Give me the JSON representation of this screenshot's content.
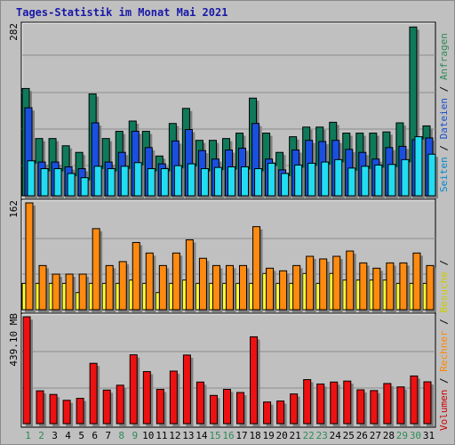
{
  "title": "Tages-Statistik im Monat Mai 2021",
  "panels": {
    "top": {
      "ylabel": "282"
    },
    "middle": {
      "ylabel": "162"
    },
    "bottom": {
      "ylabel": "439.10 MB"
    }
  },
  "legend_right_top": [
    {
      "text": "Seiten",
      "color": "#0088cc"
    },
    {
      "text": " / ",
      "color": "#000000"
    },
    {
      "text": "Dateien",
      "color": "#1a4fd0"
    },
    {
      "text": " / ",
      "color": "#000000"
    },
    {
      "text": "Anfragen",
      "color": "#2e8b57"
    }
  ],
  "legend_right_bottom": [
    {
      "text": "Volumen",
      "color": "#cc0000"
    },
    {
      "text": " / ",
      "color": "#000000"
    },
    {
      "text": "Rechner",
      "color": "#ff8800"
    },
    {
      "text": " / ",
      "color": "#000000"
    },
    {
      "text": "Besuche",
      "color": "#cccc00"
    },
    {
      "text": " / ",
      "color": "#000000"
    }
  ],
  "colors": {
    "anfragen": "#0f7a5a",
    "dateien": "#1a4fe0",
    "seiten": "#22ddf2",
    "rechner": "#ff8a10",
    "besuche": "#ffff30",
    "volumen": "#ee1111",
    "weekday_label": "#000000",
    "weekend_label": "#2e8b57"
  },
  "chart_data": [
    {
      "type": "bar",
      "title": "Tages-Statistik im Monat Mai 2021",
      "ylabel": "282",
      "ylim": [
        0,
        282
      ],
      "categories": [
        "1",
        "2",
        "3",
        "4",
        "5",
        "6",
        "7",
        "8",
        "9",
        "10",
        "11",
        "12",
        "13",
        "14",
        "15",
        "16",
        "17",
        "18",
        "19",
        "20",
        "21",
        "22",
        "23",
        "24",
        "25",
        "26",
        "27",
        "28",
        "29",
        "30",
        "31"
      ],
      "series": [
        {
          "name": "Anfragen",
          "values": [
            178,
            95,
            95,
            83,
            72,
            169,
            95,
            107,
            124,
            107,
            66,
            120,
            145,
            92,
            92,
            95,
            104,
            162,
            104,
            72,
            98,
            114,
            114,
            122,
            104,
            104,
            104,
            106,
            121,
            280,
            116
          ]
        },
        {
          "name": "Dateien",
          "values": [
            146,
            56,
            56,
            48,
            45,
            121,
            56,
            72,
            107,
            80,
            53,
            91,
            110,
            75,
            61,
            76,
            79,
            120,
            61,
            43,
            76,
            92,
            90,
            92,
            77,
            72,
            61,
            80,
            82,
            93,
            96
          ]
        },
        {
          "name": "Seiten",
          "values": [
            58,
            45,
            45,
            37,
            30,
            49,
            45,
            49,
            55,
            45,
            45,
            50,
            53,
            45,
            47,
            48,
            48,
            45,
            54,
            37,
            51,
            54,
            56,
            60,
            46,
            49,
            51,
            52,
            60,
            98,
            69
          ]
        }
      ]
    },
    {
      "type": "bar",
      "ylabel": "162",
      "ylim": [
        0,
        162
      ],
      "categories": [
        "1",
        "2",
        "3",
        "4",
        "5",
        "6",
        "7",
        "8",
        "9",
        "10",
        "11",
        "12",
        "13",
        "14",
        "15",
        "16",
        "17",
        "18",
        "19",
        "20",
        "21",
        "22",
        "23",
        "24",
        "25",
        "26",
        "27",
        "28",
        "29",
        "30",
        "31"
      ],
      "series": [
        {
          "name": "Rechner",
          "values": [
            162,
            67,
            54,
            54,
            54,
            123,
            67,
            73,
            102,
            86,
            67,
            86,
            106,
            78,
            67,
            67,
            67,
            126,
            63,
            59,
            67,
            81,
            77,
            81,
            89,
            71,
            63,
            71,
            71,
            86,
            67
          ]
        },
        {
          "name": "Besuche",
          "values": [
            40,
            40,
            40,
            40,
            26,
            40,
            40,
            40,
            45,
            40,
            26,
            40,
            45,
            40,
            40,
            40,
            40,
            40,
            55,
            40,
            40,
            55,
            40,
            55,
            45,
            45,
            45,
            45,
            40,
            40,
            40
          ]
        }
      ]
    },
    {
      "type": "bar",
      "ylabel": "439.10 MB",
      "ylim": [
        0,
        439.1
      ],
      "categories": [
        "1",
        "2",
        "3",
        "4",
        "5",
        "6",
        "7",
        "8",
        "9",
        "10",
        "11",
        "12",
        "13",
        "14",
        "15",
        "16",
        "17",
        "18",
        "19",
        "20",
        "21",
        "22",
        "23",
        "24",
        "25",
        "26",
        "27",
        "28",
        "29",
        "30",
        "31"
      ],
      "series": [
        {
          "name": "Volumen",
          "values": [
            439.1,
            135,
            120,
            96,
            104,
            248,
            138,
            158,
            283,
            214,
            141,
            216,
            282,
            171,
            116,
            141,
            128,
            357,
            89,
            93,
            122,
            181,
            163,
            171,
            175,
            139,
            136,
            165,
            151,
            196,
            172
          ]
        }
      ]
    }
  ]
}
